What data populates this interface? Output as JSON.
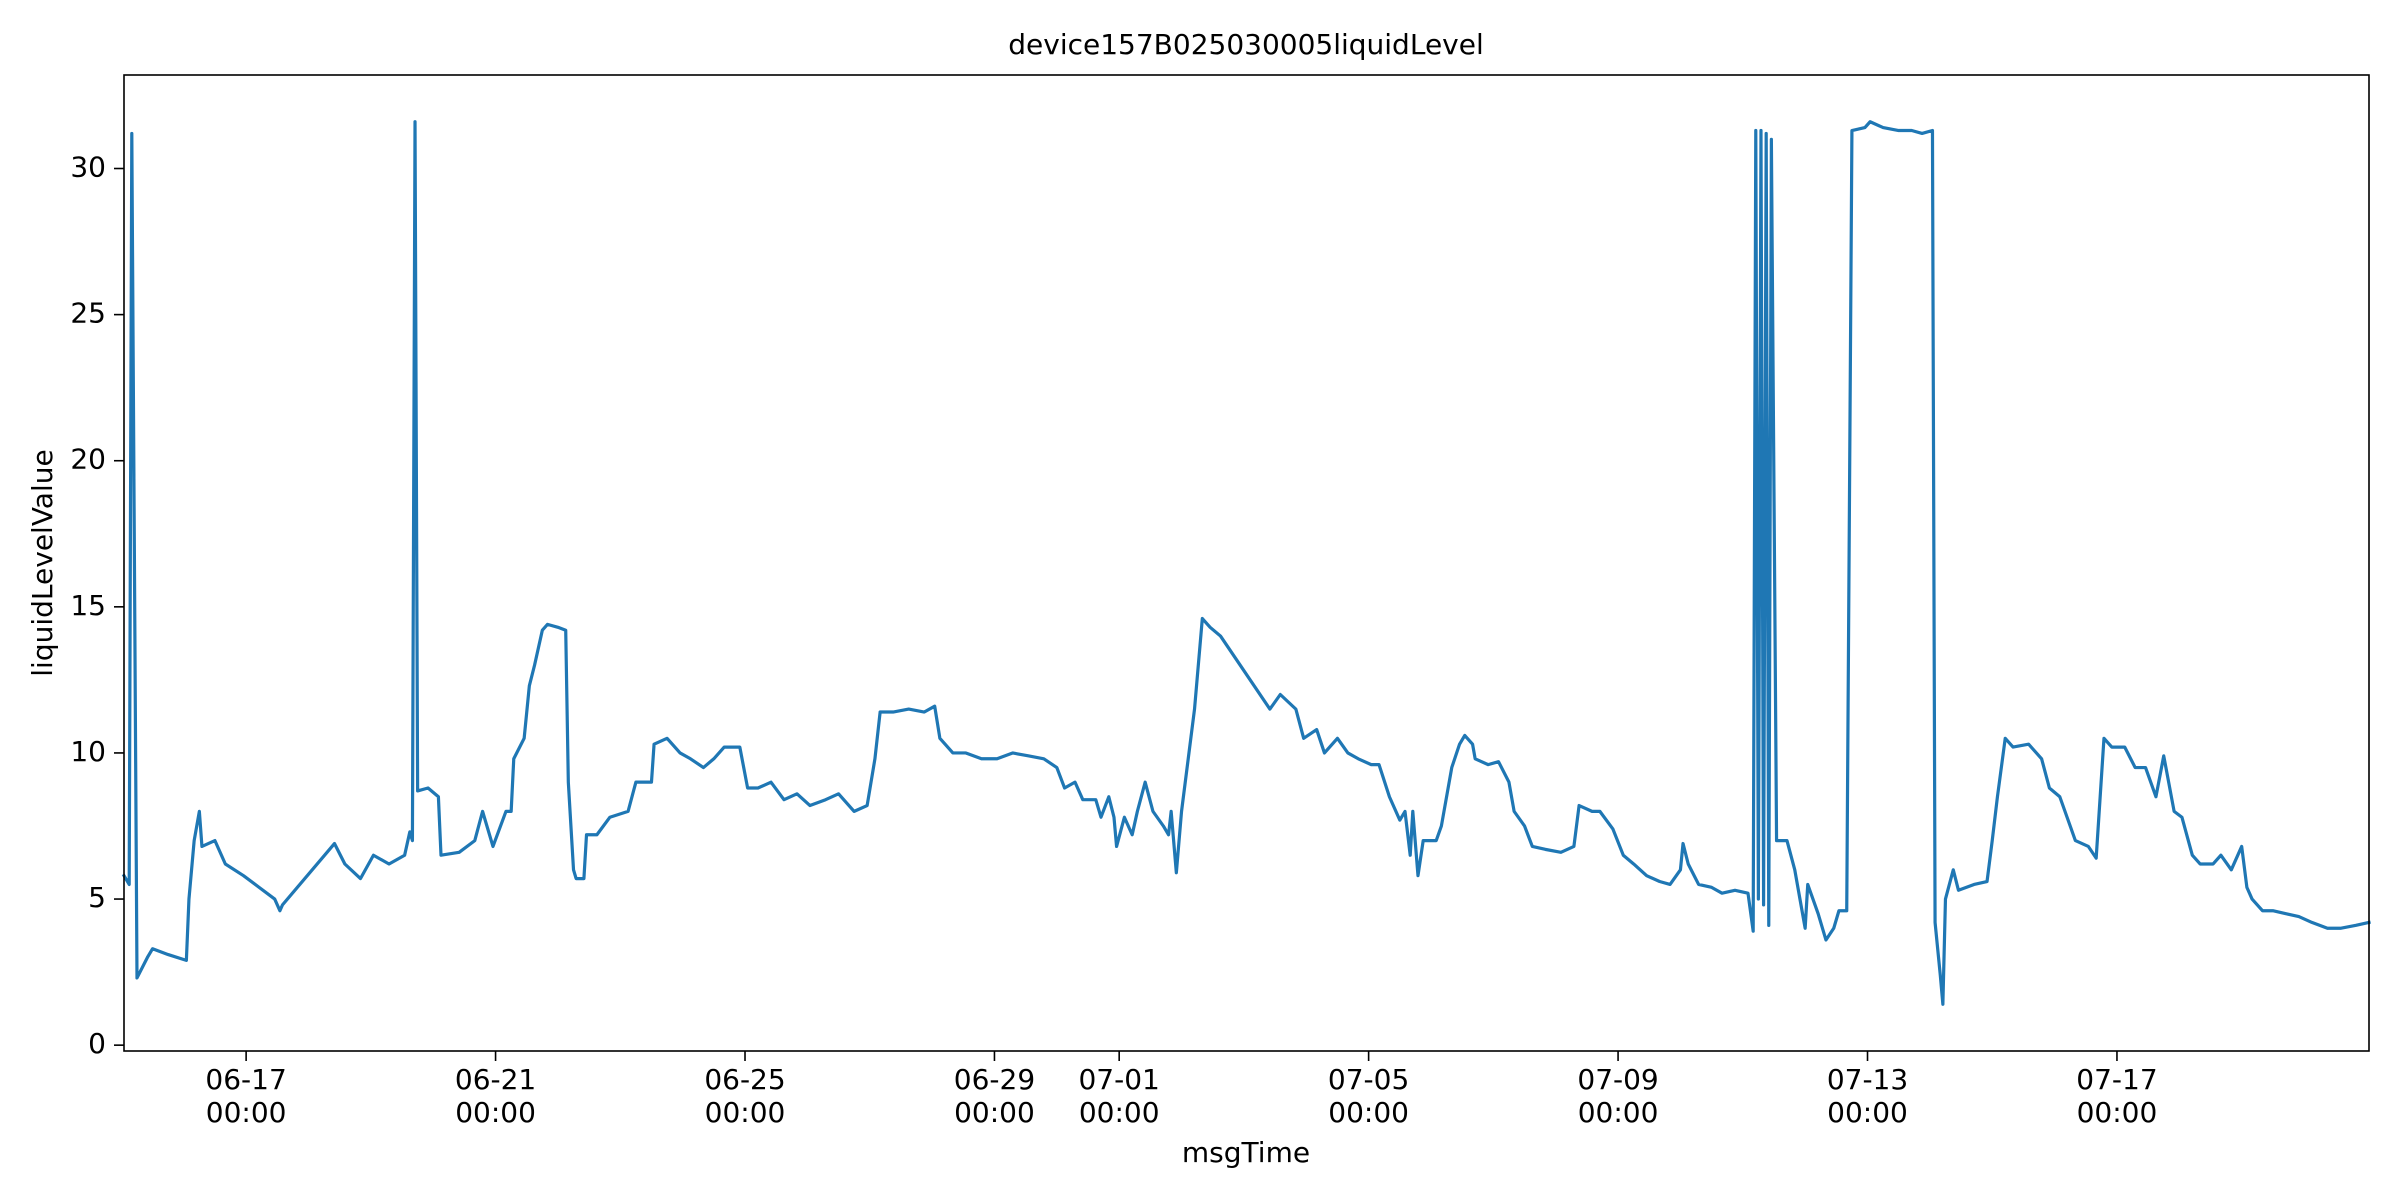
{
  "chart_data": {
    "type": "line",
    "title": "device157B025030005liquidLevel",
    "x_label": "msgTime",
    "y_label": "liquidLevelValue",
    "color": "#1f77b4",
    "xlim": [
      "06-15 01:00",
      "07-21 01:00"
    ],
    "ylim": [
      -0.2,
      33.2
    ],
    "yticks": [
      0,
      5,
      10,
      15,
      20,
      25,
      30
    ],
    "xticks": [
      {
        "value": "06-17 00:00",
        "label": "06-17\n00:00"
      },
      {
        "value": "06-21 00:00",
        "label": "06-21\n00:00"
      },
      {
        "value": "06-25 00:00",
        "label": "06-25\n00:00"
      },
      {
        "value": "06-29 00:00",
        "label": "06-29\n00:00"
      },
      {
        "value": "07-01 00:00",
        "label": "07-01\n00:00"
      },
      {
        "value": "07-05 00:00",
        "label": "07-05\n00:00"
      },
      {
        "value": "07-09 00:00",
        "label": "07-09\n00:00"
      },
      {
        "value": "07-13 00:00",
        "label": "07-13\n00:00"
      },
      {
        "value": "07-17 00:00",
        "label": "07-17\n00:00"
      }
    ],
    "x": [
      "06-15 01:00",
      "06-15 03:00",
      "06-15 04:00",
      "06-15 06:00",
      "06-15 10:00",
      "06-15 12:00",
      "06-15 18:00",
      "06-16 01:00",
      "06-16 02:00",
      "06-16 04:00",
      "06-16 06:00",
      "06-16 07:00",
      "06-16 12:00",
      "06-16 16:00",
      "06-16 23:00",
      "06-17 05:00",
      "06-17 11:00",
      "06-17 13:00",
      "06-17 14:00",
      "06-18 10:00",
      "06-18 14:00",
      "06-18 20:00",
      "06-19 01:00",
      "06-19 07:00",
      "06-19 13:00",
      "06-19 15:00",
      "06-19 16:00",
      "06-19 17:00",
      "06-19 18:00",
      "06-19 22:00",
      "06-20 02:00",
      "06-20 03:00",
      "06-20 10:00",
      "06-20 16:00",
      "06-20 19:00",
      "06-20 23:00",
      "06-21 04:00",
      "06-21 06:00",
      "06-21 07:00",
      "06-21 11:00",
      "06-21 13:00",
      "06-21 15:00",
      "06-21 18:00",
      "06-21 20:00",
      "06-22 00:00",
      "06-22 03:00",
      "06-22 04:00",
      "06-22 06:00",
      "06-22 07:00",
      "06-22 10:00",
      "06-22 11:00",
      "06-22 15:00",
      "06-22 20:00",
      "06-23 03:00",
      "06-23 06:00",
      "06-23 12:00",
      "06-23 13:00",
      "06-23 18:00",
      "06-23 23:00",
      "06-24 03:00",
      "06-24 08:00",
      "06-24 12:00",
      "06-24 16:00",
      "06-24 22:00",
      "06-25 01:00",
      "06-25 05:00",
      "06-25 10:00",
      "06-25 15:00",
      "06-25 20:00",
      "06-26 01:00",
      "06-26 07:00",
      "06-26 12:00",
      "06-26 18:00",
      "06-26 23:00",
      "06-27 02:00",
      "06-27 04:00",
      "06-27 09:00",
      "06-27 15:00",
      "06-27 21:00",
      "06-28 01:00",
      "06-28 03:00",
      "06-28 08:00",
      "06-28 13:00",
      "06-28 19:00",
      "06-29 01:00",
      "06-29 07:00",
      "06-29 13:00",
      "06-29 19:00",
      "06-30 00:00",
      "06-30 03:00",
      "06-30 07:00",
      "06-30 10:00",
      "06-30 15:00",
      "06-30 17:00",
      "06-30 20:00",
      "06-30 22:00",
      "06-30 23:00",
      "07-01 02:00",
      "07-01 05:00",
      "07-01 07:00",
      "07-01 10:00",
      "07-01 13:00",
      "07-01 17:00",
      "07-01 19:00",
      "07-01 20:00",
      "07-01 22:00",
      "07-02 00:00",
      "07-02 05:00",
      "07-02 08:00",
      "07-02 11:00",
      "07-02 15:00",
      "07-03 10:00",
      "07-03 14:00",
      "07-03 20:00",
      "07-03 23:00",
      "07-04 04:00",
      "07-04 07:00",
      "07-04 12:00",
      "07-04 16:00",
      "07-04 20:00",
      "07-05 01:00",
      "07-05 04:00",
      "07-05 08:00",
      "07-05 12:00",
      "07-05 14:00",
      "07-05 16:00",
      "07-05 17:00",
      "07-05 19:00",
      "07-05 21:00",
      "07-06 02:00",
      "07-06 04:00",
      "07-06 08:00",
      "07-06 11:00",
      "07-06 13:00",
      "07-06 16:00",
      "07-06 17:00",
      "07-06 22:00",
      "07-07 02:00",
      "07-07 06:00",
      "07-07 08:00",
      "07-07 12:00",
      "07-07 15:00",
      "07-07 20:00",
      "07-08 02:00",
      "07-08 07:00",
      "07-08 09:00",
      "07-08 14:00",
      "07-08 17:00",
      "07-08 22:00",
      "07-09 02:00",
      "07-09 06:00",
      "07-09 11:00",
      "07-09 16:00",
      "07-09 20:00",
      "07-10 00:00",
      "07-10 01:00",
      "07-10 03:00",
      "07-10 07:00",
      "07-10 12:00",
      "07-10 16:00",
      "07-10 21:00",
      "07-11 02:00",
      "07-11 04:00",
      "07-11 05:00",
      "07-11 06:00",
      "07-11 07:00",
      "07-11 08:00",
      "07-11 09:00",
      "07-11 10:00",
      "07-11 11:00",
      "07-11 13:00",
      "07-11 17:00",
      "07-11 20:00",
      "07-11 22:00",
      "07-12 00:00",
      "07-12 01:00",
      "07-12 05:00",
      "07-12 08:00",
      "07-12 11:00",
      "07-12 13:00",
      "07-12 16:00",
      "07-12 18:00",
      "07-12 23:00",
      "07-13 01:00",
      "07-13 06:00",
      "07-13 12:00",
      "07-13 17:00",
      "07-13 21:00",
      "07-14 01:00",
      "07-14 02:00",
      "07-14 04:00",
      "07-14 05:00",
      "07-14 06:00",
      "07-14 09:00",
      "07-14 11:00",
      "07-14 17:00",
      "07-14 22:00",
      "07-15 00:00",
      "07-15 02:00",
      "07-15 05:00",
      "07-15 08:00",
      "07-15 14:00",
      "07-15 19:00",
      "07-15 22:00",
      "07-16 02:00",
      "07-16 06:00",
      "07-16 08:00",
      "07-16 13:00",
      "07-16 16:00",
      "07-16 19:00",
      "07-16 22:00",
      "07-17 03:00",
      "07-17 07:00",
      "07-17 11:00",
      "07-17 15:00",
      "07-17 18:00",
      "07-17 22:00",
      "07-18 01:00",
      "07-18 05:00",
      "07-18 08:00",
      "07-18 13:00",
      "07-18 16:00",
      "07-18 20:00",
      "07-19 00:00",
      "07-19 02:00",
      "07-19 04:00",
      "07-19 08:00",
      "07-19 12:00",
      "07-19 17:00",
      "07-19 22:00",
      "07-20 03:00",
      "07-20 09:00",
      "07-20 14:00",
      "07-20 20:00",
      "07-21 01:00"
    ],
    "values": [
      5.8,
      5.5,
      31.2,
      2.3,
      3.0,
      3.3,
      3.1,
      2.9,
      5.0,
      7.0,
      8.0,
      6.8,
      7.0,
      6.2,
      5.8,
      5.4,
      5.0,
      4.6,
      4.8,
      6.9,
      6.2,
      5.7,
      6.5,
      6.2,
      6.5,
      7.3,
      7.0,
      31.6,
      8.7,
      8.8,
      8.5,
      6.5,
      6.6,
      7.0,
      8.0,
      6.8,
      8.0,
      8.0,
      9.8,
      10.5,
      12.3,
      13.0,
      14.2,
      14.4,
      14.3,
      14.2,
      9.0,
      6.0,
      5.7,
      5.7,
      7.2,
      7.2,
      7.8,
      8.0,
      9.0,
      9.0,
      10.3,
      10.5,
      10.0,
      9.8,
      9.5,
      9.8,
      10.2,
      10.2,
      8.8,
      8.8,
      9.0,
      8.4,
      8.6,
      8.2,
      8.4,
      8.6,
      8.0,
      8.2,
      9.8,
      11.4,
      11.4,
      11.5,
      11.4,
      11.6,
      10.5,
      10.0,
      10.0,
      9.8,
      9.8,
      10.0,
      9.9,
      9.8,
      9.5,
      8.8,
      9.0,
      8.4,
      8.4,
      7.8,
      8.5,
      7.8,
      6.8,
      7.8,
      7.2,
      8.0,
      9.0,
      8.0,
      7.5,
      7.2,
      8.0,
      5.9,
      8.0,
      11.5,
      14.6,
      14.3,
      14.0,
      11.5,
      12.0,
      11.5,
      10.5,
      10.8,
      10.0,
      10.5,
      10.0,
      9.8,
      9.6,
      9.6,
      8.5,
      7.7,
      8.0,
      6.5,
      8.0,
      5.8,
      7.0,
      7.0,
      7.5,
      9.5,
      10.3,
      10.6,
      10.3,
      9.8,
      9.6,
      9.7,
      9.0,
      8.0,
      7.5,
      6.8,
      6.7,
      6.6,
      6.8,
      8.2,
      8.0,
      8.0,
      7.4,
      6.5,
      6.2,
      5.8,
      5.6,
      5.5,
      6.0,
      6.9,
      6.2,
      5.5,
      5.4,
      5.2,
      5.3,
      5.2,
      3.9,
      31.3,
      5.0,
      31.3,
      4.8,
      31.2,
      4.1,
      31.0,
      7.0,
      7.0,
      6.0,
      5.0,
      4.0,
      5.5,
      4.5,
      3.6,
      4.0,
      4.6,
      4.6,
      31.3,
      31.4,
      31.6,
      31.4,
      31.3,
      31.3,
      31.2,
      31.3,
      4.2,
      2.4,
      1.4,
      5.0,
      6.0,
      5.3,
      5.5,
      5.6,
      7.0,
      8.5,
      10.5,
      10.2,
      10.3,
      9.8,
      8.8,
      8.5,
      7.5,
      7.0,
      6.8,
      6.4,
      10.5,
      10.2,
      10.2,
      9.5,
      9.5,
      8.5,
      9.9,
      8.0,
      7.8,
      6.5,
      6.2,
      6.2,
      6.5,
      6.0,
      6.8,
      5.4,
      5.0,
      4.6,
      4.6,
      4.5,
      4.4,
      4.2,
      4.0,
      4.0,
      4.1,
      4.2
    ]
  }
}
